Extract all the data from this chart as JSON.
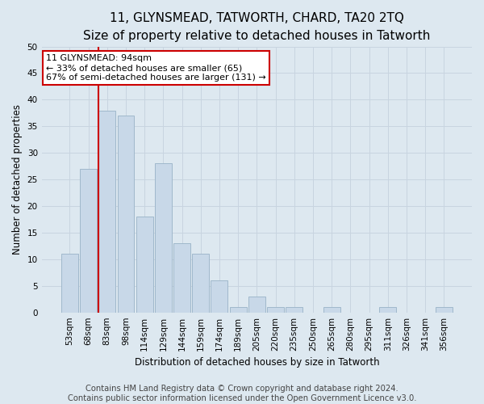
{
  "title": "11, GLYNSMEAD, TATWORTH, CHARD, TA20 2TQ",
  "subtitle": "Size of property relative to detached houses in Tatworth",
  "xlabel": "Distribution of detached houses by size in Tatworth",
  "ylabel": "Number of detached properties",
  "bar_labels": [
    "53sqm",
    "68sqm",
    "83sqm",
    "98sqm",
    "114sqm",
    "129sqm",
    "144sqm",
    "159sqm",
    "174sqm",
    "189sqm",
    "205sqm",
    "220sqm",
    "235sqm",
    "250sqm",
    "265sqm",
    "280sqm",
    "295sqm",
    "311sqm",
    "326sqm",
    "341sqm",
    "356sqm"
  ],
  "bar_values": [
    11,
    27,
    38,
    37,
    18,
    28,
    13,
    11,
    6,
    1,
    3,
    1,
    1,
    0,
    1,
    0,
    0,
    1,
    0,
    0,
    1
  ],
  "bar_color": "#c8d8e8",
  "bar_edge_color": "#a0b8cc",
  "grid_color": "#c8d4e0",
  "background_color": "#dde8f0",
  "vline_x_index": 2,
  "vline_color": "#cc0000",
  "annotation_text": "11 GLYNSMEAD: 94sqm\n← 33% of detached houses are smaller (65)\n67% of semi-detached houses are larger (131) →",
  "annotation_box_color": "#ffffff",
  "annotation_box_edge": "#cc0000",
  "ylim": [
    0,
    50
  ],
  "yticks": [
    0,
    5,
    10,
    15,
    20,
    25,
    30,
    35,
    40,
    45,
    50
  ],
  "footer_text": "Contains HM Land Registry data © Crown copyright and database right 2024.\nContains public sector information licensed under the Open Government Licence v3.0.",
  "title_fontsize": 11,
  "subtitle_fontsize": 9.5,
  "axis_label_fontsize": 8.5,
  "tick_fontsize": 7.5,
  "footer_fontsize": 7.2,
  "annotation_fontsize": 8
}
